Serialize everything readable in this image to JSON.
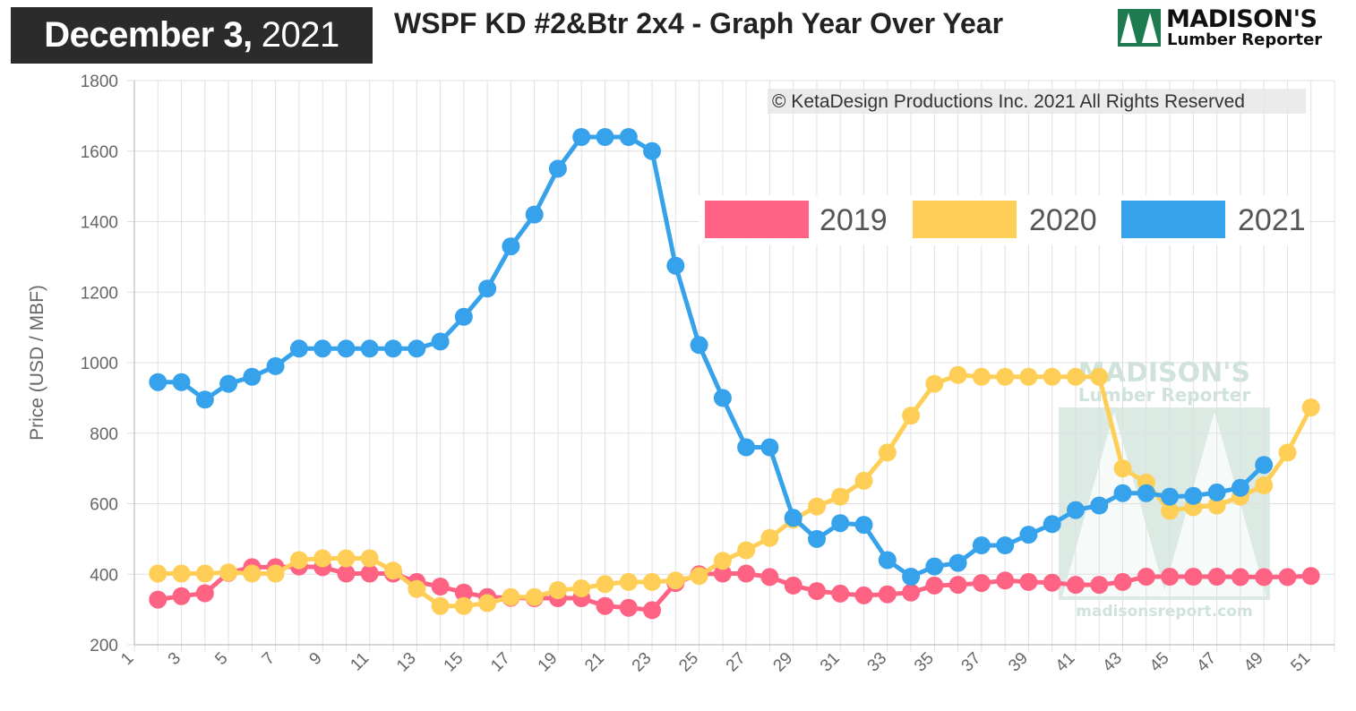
{
  "header": {
    "date_main": "December 3,",
    "date_year": "2021",
    "title": "WSPF KD #2&Btr 2x4 - Graph Year Over Year"
  },
  "logo": {
    "line1": "MADISON'S",
    "line2": "Lumber Reporter"
  },
  "copyright": "© KetaDesign Productions Inc. 2021 All Rights Reserved",
  "watermark": {
    "line1": "MADISON'S",
    "line2": "Lumber Reporter",
    "url": "madisonsreport.com"
  },
  "colors": {
    "2019": "#ff6384",
    "2020": "#ffce56",
    "2021": "#36a2eb",
    "grid": "#e0e0e0",
    "badge_bg": "#2b2b2b",
    "logo_green": "#1e7a4f"
  },
  "chart_data": {
    "type": "line",
    "title": "WSPF KD #2&Btr 2x4 - Graph Year Over Year",
    "xlabel": "",
    "ylabel": "Price (USD / MBF)",
    "xlim": [
      1,
      52
    ],
    "ylim": [
      200,
      1800
    ],
    "yticks": [
      200,
      400,
      600,
      800,
      1000,
      1200,
      1400,
      1600,
      1800
    ],
    "xticks": [
      1,
      3,
      5,
      7,
      9,
      11,
      13,
      15,
      17,
      19,
      21,
      23,
      25,
      27,
      29,
      31,
      33,
      35,
      37,
      39,
      41,
      43,
      45,
      47,
      49,
      51
    ],
    "grid": true,
    "legend_position": "top-right",
    "series": [
      {
        "name": "2019",
        "points": [
          [
            2,
            328
          ],
          [
            3,
            338
          ],
          [
            4,
            346
          ],
          [
            5,
            404
          ],
          [
            6,
            420
          ],
          [
            7,
            420
          ],
          [
            8,
            422
          ],
          [
            9,
            420
          ],
          [
            10,
            402
          ],
          [
            11,
            402
          ],
          [
            12,
            402
          ],
          [
            13,
            378
          ],
          [
            14,
            365
          ],
          [
            15,
            348
          ],
          [
            16,
            335
          ],
          [
            17,
            333
          ],
          [
            18,
            332
          ],
          [
            19,
            332
          ],
          [
            20,
            332
          ],
          [
            21,
            310
          ],
          [
            22,
            305
          ],
          [
            23,
            298
          ],
          [
            24,
            375
          ],
          [
            25,
            400
          ],
          [
            26,
            402
          ],
          [
            27,
            402
          ],
          [
            28,
            392
          ],
          [
            29,
            368
          ],
          [
            30,
            352
          ],
          [
            31,
            345
          ],
          [
            32,
            340
          ],
          [
            33,
            343
          ],
          [
            34,
            348
          ],
          [
            35,
            368
          ],
          [
            36,
            370
          ],
          [
            37,
            375
          ],
          [
            38,
            382
          ],
          [
            39,
            378
          ],
          [
            40,
            376
          ],
          [
            41,
            370
          ],
          [
            42,
            370
          ],
          [
            43,
            378
          ],
          [
            44,
            393
          ],
          [
            45,
            393
          ],
          [
            46,
            393
          ],
          [
            47,
            393
          ],
          [
            48,
            392
          ],
          [
            49,
            392
          ],
          [
            50,
            392
          ],
          [
            51,
            395
          ]
        ]
      },
      {
        "name": "2020",
        "points": [
          [
            2,
            402
          ],
          [
            3,
            402
          ],
          [
            4,
            402
          ],
          [
            5,
            405
          ],
          [
            6,
            402
          ],
          [
            7,
            402
          ],
          [
            8,
            440
          ],
          [
            9,
            445
          ],
          [
            10,
            445
          ],
          [
            11,
            445
          ],
          [
            12,
            410
          ],
          [
            13,
            358
          ],
          [
            14,
            310
          ],
          [
            15,
            310
          ],
          [
            16,
            318
          ],
          [
            17,
            335
          ],
          [
            18,
            335
          ],
          [
            19,
            355
          ],
          [
            20,
            360
          ],
          [
            21,
            372
          ],
          [
            22,
            378
          ],
          [
            23,
            378
          ],
          [
            24,
            382
          ],
          [
            25,
            395
          ],
          [
            26,
            438
          ],
          [
            27,
            468
          ],
          [
            28,
            503
          ],
          [
            29,
            555
          ],
          [
            30,
            592
          ],
          [
            31,
            620
          ],
          [
            32,
            665
          ],
          [
            33,
            745
          ],
          [
            34,
            850
          ],
          [
            35,
            940
          ],
          [
            36,
            965
          ],
          [
            37,
            960
          ],
          [
            38,
            960
          ],
          [
            39,
            960
          ],
          [
            40,
            960
          ],
          [
            41,
            960
          ],
          [
            42,
            960
          ],
          [
            43,
            700
          ],
          [
            44,
            660
          ],
          [
            45,
            580
          ],
          [
            46,
            590
          ],
          [
            47,
            595
          ],
          [
            48,
            620
          ],
          [
            49,
            652
          ],
          [
            50,
            745
          ],
          [
            51,
            873
          ]
        ]
      },
      {
        "name": "2021",
        "points": [
          [
            2,
            945
          ],
          [
            3,
            945
          ],
          [
            4,
            895
          ],
          [
            5,
            940
          ],
          [
            6,
            960
          ],
          [
            7,
            990
          ],
          [
            8,
            1040
          ],
          [
            9,
            1040
          ],
          [
            10,
            1040
          ],
          [
            11,
            1040
          ],
          [
            12,
            1040
          ],
          [
            13,
            1040
          ],
          [
            14,
            1060
          ],
          [
            15,
            1130
          ],
          [
            16,
            1210
          ],
          [
            17,
            1330
          ],
          [
            18,
            1420
          ],
          [
            19,
            1550
          ],
          [
            20,
            1640
          ],
          [
            21,
            1640
          ],
          [
            22,
            1640
          ],
          [
            23,
            1600
          ],
          [
            24,
            1275
          ],
          [
            25,
            1050
          ],
          [
            26,
            900
          ],
          [
            27,
            760
          ],
          [
            28,
            760
          ],
          [
            29,
            560
          ],
          [
            30,
            500
          ],
          [
            31,
            545
          ],
          [
            32,
            540
          ],
          [
            33,
            440
          ],
          [
            34,
            393
          ],
          [
            35,
            422
          ],
          [
            36,
            432
          ],
          [
            37,
            482
          ],
          [
            38,
            482
          ],
          [
            39,
            512
          ],
          [
            40,
            542
          ],
          [
            41,
            582
          ],
          [
            42,
            595
          ],
          [
            43,
            630
          ],
          [
            44,
            630
          ],
          [
            45,
            620
          ],
          [
            46,
            622
          ],
          [
            47,
            632
          ],
          [
            48,
            645
          ],
          [
            49,
            710
          ]
        ]
      }
    ]
  }
}
